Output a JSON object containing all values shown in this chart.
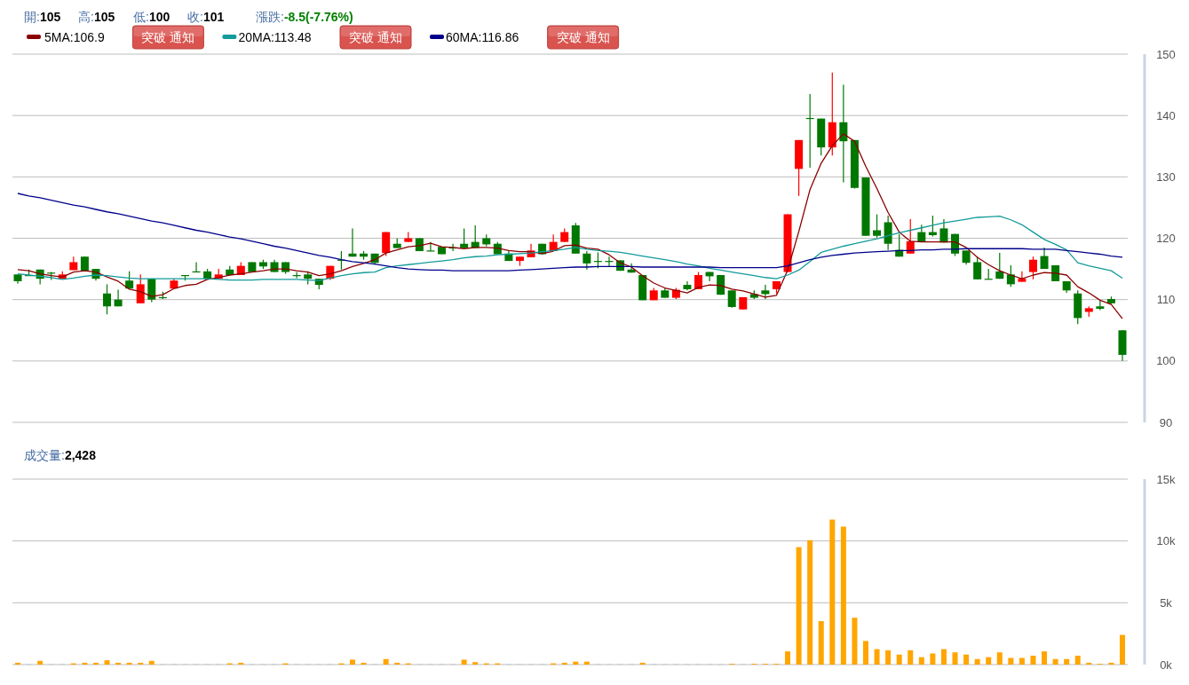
{
  "chart_data": [
    {
      "type": "candlestick",
      "categories": [
        null,
        null,
        null,
        null,
        null,
        null,
        null,
        null,
        null,
        null,
        null,
        null,
        null,
        null,
        null,
        null,
        null,
        null,
        null,
        null,
        null,
        null,
        null,
        null,
        null,
        null,
        null,
        null,
        null,
        null,
        null,
        null,
        null,
        null,
        null,
        null,
        null,
        null,
        null,
        null,
        null,
        null,
        null,
        null,
        null,
        null,
        null,
        null,
        null,
        null,
        null,
        null,
        null,
        null,
        null,
        null,
        null,
        null,
        null,
        null,
        null,
        null,
        null,
        null,
        null,
        null,
        null,
        null,
        null,
        null,
        null,
        null,
        null,
        null,
        null,
        null,
        null,
        null,
        null,
        null,
        null,
        null,
        null,
        null,
        null,
        null,
        null,
        null,
        null,
        null,
        null,
        null,
        null,
        null,
        null,
        null,
        null,
        null,
        null,
        null
      ],
      "ohlc": [
        [
          114.1,
          114.1,
          112.6,
          113.0
        ],
        [
          114.0,
          114.9,
          113.9,
          113.9
        ],
        [
          114.9,
          114.9,
          112.5,
          113.4
        ],
        [
          114.4,
          114.5,
          113.2,
          114.3
        ],
        [
          113.4,
          114.6,
          113.4,
          114.1
        ],
        [
          114.8,
          117.0,
          114.8,
          116.1
        ],
        [
          117.0,
          117.0,
          114.6,
          114.7
        ],
        [
          115.0,
          115.0,
          113.1,
          113.4
        ],
        [
          111.0,
          112.5,
          107.6,
          108.9
        ],
        [
          110.0,
          111.6,
          108.9,
          108.9
        ],
        [
          113.1,
          114.6,
          111.8,
          111.8
        ],
        [
          109.4,
          114.1,
          109.4,
          112.5
        ],
        [
          113.4,
          113.4,
          109.6,
          110.0
        ],
        [
          110.4,
          111.3,
          110.1,
          110.3
        ],
        [
          111.8,
          113.4,
          111.8,
          113.1
        ],
        [
          114.0,
          114.0,
          113.1,
          113.9
        ],
        [
          114.6,
          116.1,
          114.5,
          114.5
        ],
        [
          114.6,
          115.0,
          113.4,
          113.4
        ],
        [
          113.4,
          115.0,
          113.4,
          114.1
        ],
        [
          114.9,
          115.5,
          114.0,
          114.0
        ],
        [
          114.0,
          116.1,
          114.0,
          115.5
        ],
        [
          116.1,
          116.1,
          114.5,
          114.5
        ],
        [
          116.1,
          116.5,
          115.0,
          115.4
        ],
        [
          116.1,
          116.5,
          114.5,
          114.5
        ],
        [
          116.1,
          116.1,
          114.2,
          114.5
        ],
        [
          114.0,
          114.5,
          113.5,
          113.9
        ],
        [
          114.1,
          114.6,
          112.5,
          113.4
        ],
        [
          113.4,
          113.4,
          111.7,
          112.4
        ],
        [
          113.4,
          115.5,
          113.2,
          115.5
        ],
        [
          116.5,
          117.9,
          114.9,
          116.4
        ],
        [
          117.5,
          121.6,
          117.0,
          117.0
        ],
        [
          117.5,
          117.9,
          116.5,
          117.0
        ],
        [
          117.5,
          117.5,
          115.7,
          116.0
        ],
        [
          117.6,
          121.0,
          117.1,
          121.0
        ],
        [
          119.1,
          120.0,
          118.4,
          118.4
        ],
        [
          119.4,
          121.0,
          119.4,
          120.0
        ],
        [
          120.0,
          120.0,
          117.9,
          117.9
        ],
        [
          118.0,
          119.4,
          117.9,
          117.9
        ],
        [
          118.6,
          118.6,
          117.4,
          117.4
        ],
        [
          118.5,
          119.1,
          117.9,
          118.4
        ],
        [
          119.1,
          121.6,
          118.4,
          118.4
        ],
        [
          119.4,
          122.1,
          118.4,
          118.4
        ],
        [
          120.0,
          120.6,
          118.7,
          119.0
        ],
        [
          119.1,
          119.4,
          117.4,
          117.4
        ],
        [
          117.5,
          117.9,
          116.3,
          116.3
        ],
        [
          116.3,
          117.0,
          115.5,
          117.0
        ],
        [
          116.9,
          119.1,
          116.9,
          118.0
        ],
        [
          119.1,
          119.1,
          117.4,
          117.4
        ],
        [
          117.9,
          120.6,
          117.9,
          119.4
        ],
        [
          119.4,
          121.6,
          119.4,
          121.0
        ],
        [
          122.1,
          122.5,
          117.5,
          117.5
        ],
        [
          117.5,
          117.9,
          114.9,
          115.9
        ],
        [
          116.3,
          117.7,
          115.1,
          116.2
        ],
        [
          116.3,
          117.0,
          115.4,
          116.2
        ],
        [
          116.4,
          116.4,
          114.7,
          114.7
        ],
        [
          114.9,
          115.9,
          114.4,
          114.4
        ],
        [
          114.0,
          114.0,
          109.9,
          109.9
        ],
        [
          109.9,
          111.9,
          109.9,
          111.5
        ],
        [
          111.5,
          111.9,
          110.3,
          110.3
        ],
        [
          110.3,
          111.9,
          110.1,
          111.6
        ],
        [
          112.4,
          113.0,
          111.5,
          111.7
        ],
        [
          111.7,
          114.5,
          111.7,
          114.0
        ],
        [
          114.5,
          114.5,
          113.0,
          113.8
        ],
        [
          114.0,
          114.0,
          110.8,
          110.8
        ],
        [
          111.5,
          111.5,
          108.7,
          108.8
        ],
        [
          108.4,
          110.4,
          108.4,
          110.4
        ],
        [
          110.9,
          111.5,
          110.1,
          110.3
        ],
        [
          111.5,
          112.4,
          110.1,
          110.9
        ],
        [
          111.7,
          113.0,
          111.0,
          113.0
        ],
        [
          114.5,
          123.9,
          114.5,
          123.9
        ],
        [
          131.3,
          136.0,
          126.9,
          136.0
        ],
        [
          139.6,
          143.5,
          131.5,
          139.5
        ],
        [
          139.5,
          139.5,
          133.5,
          134.8
        ],
        [
          134.8,
          147.0,
          133.5,
          138.9
        ],
        [
          138.9,
          145.0,
          129.1,
          135.8
        ],
        [
          136.0,
          136.0,
          128.1,
          128.2
        ],
        [
          129.9,
          129.9,
          120.4,
          120.4
        ],
        [
          121.3,
          123.9,
          120.1,
          120.4
        ],
        [
          122.6,
          123.7,
          118.1,
          119.1
        ],
        [
          118.1,
          120.7,
          117.0,
          117.0
        ],
        [
          117.5,
          123.1,
          117.5,
          119.5
        ],
        [
          121.0,
          122.2,
          119.4,
          119.4
        ],
        [
          121.0,
          123.7,
          120.3,
          120.5
        ],
        [
          121.6,
          123.1,
          119.3,
          119.3
        ],
        [
          120.7,
          120.7,
          117.1,
          117.5
        ],
        [
          118.0,
          118.0,
          115.7,
          116.0
        ],
        [
          116.1,
          117.0,
          113.3,
          113.3
        ],
        [
          113.4,
          115.0,
          113.3,
          113.3
        ],
        [
          114.6,
          117.6,
          113.4,
          113.4
        ],
        [
          114.1,
          115.6,
          112.1,
          112.5
        ],
        [
          112.9,
          114.6,
          112.9,
          113.4
        ],
        [
          114.5,
          117.0,
          113.3,
          116.5
        ],
        [
          117.1,
          118.5,
          115.0,
          115.0
        ],
        [
          115.6,
          115.6,
          113.0,
          113.0
        ],
        [
          113.0,
          113.0,
          111.1,
          111.5
        ],
        [
          111.0,
          111.5,
          106.0,
          107.0
        ],
        [
          108.0,
          108.9,
          107.2,
          108.6
        ],
        [
          108.9,
          109.8,
          108.3,
          108.5
        ],
        [
          110.1,
          110.5,
          109.3,
          109.4
        ],
        [
          105,
          105,
          100,
          101
        ]
      ],
      "series": [
        {
          "type": "line",
          "name": "5MA:106.9",
          "color": "#8b0000",
          "values": [
            114.9,
            114.7,
            114.2,
            113.9,
            113.7,
            114.5,
            114.7,
            114.5,
            113.7,
            113.0,
            111.7,
            111.3,
            110.5,
            110.8,
            111.8,
            112.3,
            112.5,
            113.3,
            113.6,
            114.0,
            114.2,
            114.5,
            114.7,
            115.0,
            115.0,
            114.7,
            114.5,
            113.9,
            114.2,
            114.7,
            115.4,
            115.9,
            116.5,
            117.6,
            118.1,
            118.6,
            118.8,
            119.2,
            118.6,
            118.5,
            118.3,
            118.5,
            118.5,
            118.4,
            118.0,
            117.8,
            117.8,
            117.5,
            117.9,
            118.8,
            118.9,
            118.4,
            118.2,
            117.3,
            116.0,
            115.3,
            113.9,
            112.7,
            111.9,
            111.5,
            111.1,
            112.0,
            112.4,
            112.3,
            111.7,
            111.4,
            110.9,
            110.4,
            110.7,
            114.8,
            121.1,
            127.9,
            132.2,
            135.1,
            137.0,
            135.8,
            131.7,
            128.1,
            124.2,
            121.0,
            119.5,
            119.4,
            119.4,
            119.4,
            119.4,
            118.5,
            116.9,
            115.7,
            114.7,
            114.0,
            113.4,
            114.0,
            114.4,
            114.3,
            114.0,
            112.1,
            111.1,
            109.9,
            109.2,
            106.9
          ]
        },
        {
          "type": "line",
          "name": "20MA:113.48",
          "color": "#139a9a",
          "values": [
            114.2,
            114.0,
            113.8,
            113.6,
            113.3,
            113.5,
            113.8,
            114.0,
            113.9,
            113.7,
            113.5,
            113.4,
            113.4,
            113.4,
            113.4,
            113.4,
            113.4,
            113.4,
            113.3,
            113.2,
            113.2,
            113.2,
            113.3,
            113.3,
            113.3,
            113.3,
            113.2,
            113.1,
            113.5,
            113.9,
            114.2,
            114.4,
            114.5,
            115.2,
            115.5,
            115.7,
            115.9,
            116.1,
            116.3,
            116.5,
            116.8,
            117.0,
            117.1,
            117.3,
            117.4,
            117.5,
            117.6,
            117.8,
            118.0,
            118.2,
            118.5,
            118.2,
            118.0,
            117.9,
            117.7,
            117.4,
            117.1,
            116.8,
            116.5,
            116.2,
            115.8,
            115.5,
            115.1,
            114.8,
            114.5,
            114.2,
            113.9,
            113.6,
            113.4,
            114.0,
            114.8,
            116.2,
            117.7,
            118.2,
            118.7,
            119.1,
            119.5,
            119.9,
            120.4,
            120.9,
            121.3,
            121.7,
            122.1,
            122.5,
            122.8,
            123.1,
            123.4,
            123.5,
            123.6,
            123.0,
            122.2,
            121.0,
            119.8,
            119.0,
            118.1,
            116.0,
            115.5,
            115.1,
            114.7,
            113.5
          ]
        },
        {
          "type": "line",
          "name": "60MA:116.86",
          "color": "#00008b",
          "values": [
            127.3,
            126.9,
            126.6,
            126.2,
            125.8,
            125.4,
            125.1,
            124.7,
            124.3,
            124.0,
            123.6,
            123.2,
            122.8,
            122.5,
            122.1,
            121.7,
            121.3,
            121.0,
            120.6,
            120.2,
            119.9,
            119.5,
            119.1,
            118.7,
            118.4,
            118.0,
            117.6,
            117.2,
            116.9,
            116.5,
            116.2,
            116.0,
            115.8,
            115.5,
            115.2,
            115.0,
            114.9,
            114.8,
            114.8,
            114.7,
            114.7,
            114.7,
            114.7,
            114.7,
            114.7,
            114.8,
            114.9,
            115.0,
            115.1,
            115.2,
            115.3,
            115.3,
            115.4,
            115.4,
            115.4,
            115.4,
            115.3,
            115.3,
            115.3,
            115.3,
            115.3,
            115.3,
            115.3,
            115.2,
            115.2,
            115.2,
            115.2,
            115.2,
            115.2,
            115.5,
            116.0,
            116.5,
            116.9,
            117.2,
            117.4,
            117.6,
            117.7,
            117.8,
            117.9,
            118.0,
            118.0,
            118.1,
            118.1,
            118.2,
            118.2,
            118.3,
            118.3,
            118.3,
            118.3,
            118.3,
            118.3,
            118.2,
            118.2,
            118.2,
            118.0,
            117.8,
            117.6,
            117.4,
            117.1,
            116.9
          ]
        }
      ],
      "ylim": [
        90,
        150
      ],
      "yticks": [
        90,
        100,
        110,
        120,
        130,
        140,
        150
      ],
      "grid": "y",
      "legend": "top left",
      "annotations": [
        "開:105",
        "高:105",
        "低:100",
        "收:101",
        "漲跌:-8.5(-7.76%)",
        "突破 通知",
        "突破 通知",
        "突破 通知"
      ]
    },
    {
      "type": "bar",
      "title": "成交量:2,428",
      "categories": [
        null,
        null,
        null,
        null,
        null,
        null,
        null,
        null,
        null,
        null,
        null,
        null,
        null,
        null,
        null,
        null,
        null,
        null,
        null,
        null,
        null,
        null,
        null,
        null,
        null,
        null,
        null,
        null,
        null,
        null,
        null,
        null,
        null,
        null,
        null,
        null,
        null,
        null,
        null,
        null,
        null,
        null,
        null,
        null,
        null,
        null,
        null,
        null,
        null,
        null,
        null,
        null,
        null,
        null,
        null,
        null,
        null,
        null,
        null,
        null,
        null,
        null,
        null,
        null,
        null,
        null,
        null,
        null,
        null,
        null,
        null,
        null,
        null,
        null,
        null,
        null,
        null,
        null,
        null,
        null,
        null,
        null,
        null,
        null,
        null,
        null,
        null,
        null,
        null,
        null,
        null,
        null,
        null,
        null,
        null,
        null,
        null,
        null,
        null,
        null
      ],
      "values": [
        0.15,
        0,
        0.3,
        0,
        0,
        0.1,
        0.15,
        0.15,
        0.35,
        0.15,
        0.15,
        0.15,
        0.3,
        0,
        0,
        0,
        0,
        0,
        0,
        0.1,
        0.15,
        0,
        0,
        0,
        0.1,
        0,
        0,
        0,
        0,
        0.1,
        0.4,
        0.15,
        0,
        0.45,
        0.15,
        0.1,
        0,
        0,
        0,
        0,
        0.4,
        0.2,
        0.1,
        0.1,
        0,
        0,
        0,
        0,
        0.1,
        0.15,
        0.24,
        0.24,
        0,
        0,
        0,
        0,
        0.15,
        0,
        0,
        0,
        0,
        0,
        0,
        0,
        0.06,
        0,
        0.06,
        0.06,
        0.06,
        1.07,
        9.5,
        10.06,
        3.52,
        11.73,
        11.16,
        3.79,
        1.91,
        1.25,
        1.16,
        0.81,
        1.16,
        0.6,
        0.9,
        1.25,
        0.99,
        0.81,
        0.45,
        0.6,
        0.99,
        0.54,
        0.54,
        0.72,
        1.07,
        0.45,
        0.45,
        0.72,
        0.15,
        0.06,
        0.15,
        2.4
      ],
      "color": "#ffa500",
      "ylim": [
        0,
        15
      ],
      "yticks": [
        {
          "value": 0,
          "label": "0k"
        },
        {
          "value": 5,
          "label": "5k"
        },
        {
          "value": 10,
          "label": "10k"
        },
        {
          "value": 15,
          "label": "15k"
        }
      ],
      "grid": "y"
    }
  ]
}
